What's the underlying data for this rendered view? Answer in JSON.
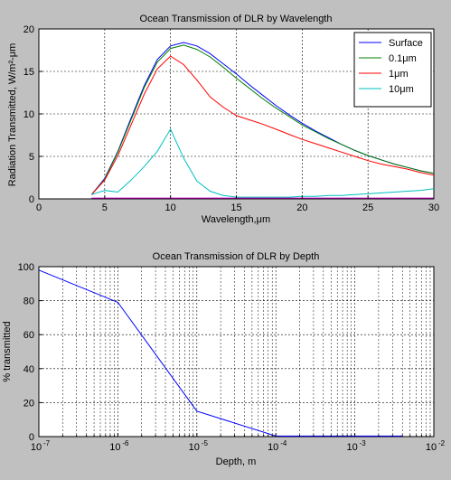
{
  "chart_data": [
    {
      "type": "line",
      "title": "Ocean Transmission of DLR by Wavelength",
      "xlabel": "Wavelength,μm",
      "ylabel": "Radiation Transmitted, W/m²-μm",
      "xlim": [
        0,
        30
      ],
      "ylim": [
        0,
        20
      ],
      "xticks": [
        0,
        5,
        10,
        15,
        20,
        25,
        30
      ],
      "yticks": [
        0,
        5,
        10,
        15,
        20
      ],
      "grid": true,
      "legend_position": "top-right",
      "series": [
        {
          "name": "Surface",
          "color": "#0000ff",
          "x": [
            4,
            5,
            6,
            7,
            8,
            9,
            10,
            11,
            12,
            13,
            14,
            15,
            16,
            17,
            18,
            19,
            20,
            21,
            22,
            23,
            24,
            25,
            26,
            27,
            28,
            29,
            30
          ],
          "y": [
            0.5,
            2.4,
            5.6,
            9.5,
            13.3,
            16.4,
            18.0,
            18.4,
            18.0,
            17.1,
            15.9,
            14.7,
            13.4,
            12.2,
            11.0,
            9.9,
            8.9,
            8.0,
            7.2,
            6.4,
            5.7,
            5.1,
            4.6,
            4.1,
            3.7,
            3.3,
            3.0
          ]
        },
        {
          "name": "0.1μm",
          "color": "#008000",
          "x": [
            4,
            5,
            6,
            7,
            8,
            9,
            10,
            11,
            12,
            13,
            14,
            15,
            16,
            17,
            18,
            19,
            20,
            21,
            22,
            23,
            24,
            25,
            26,
            27,
            28,
            29,
            30
          ],
          "y": [
            0.5,
            2.3,
            5.5,
            9.3,
            13.1,
            16.1,
            17.7,
            18.1,
            17.6,
            16.7,
            15.5,
            14.2,
            13.0,
            11.8,
            10.7,
            9.7,
            8.7,
            7.9,
            7.1,
            6.4,
            5.7,
            5.1,
            4.6,
            4.1,
            3.7,
            3.3,
            3.0
          ]
        },
        {
          "name": "1μm",
          "color": "#ff0000",
          "x": [
            4,
            5,
            6,
            7,
            8,
            9,
            10,
            11,
            12,
            13,
            14,
            15,
            16,
            17,
            18,
            19,
            20,
            21,
            22,
            23,
            24,
            25,
            26,
            27,
            28,
            29,
            30
          ],
          "y": [
            0.5,
            2.2,
            5.1,
            8.7,
            12.3,
            15.3,
            16.8,
            15.8,
            14.0,
            12.0,
            10.8,
            9.8,
            9.3,
            8.8,
            8.2,
            7.6,
            7.0,
            6.5,
            6.0,
            5.5,
            5.0,
            4.5,
            4.1,
            3.8,
            3.5,
            3.1,
            2.8
          ]
        },
        {
          "name": "10μm",
          "color": "#00bfbf",
          "x": [
            4,
            5,
            6,
            7,
            8,
            9,
            10,
            11,
            12,
            13,
            14,
            15,
            16,
            17,
            18,
            19,
            20,
            21,
            22,
            23,
            24,
            25,
            26,
            27,
            28,
            29,
            30
          ],
          "y": [
            0.5,
            1.0,
            0.8,
            2.2,
            3.8,
            5.6,
            8.2,
            4.8,
            2.1,
            0.9,
            0.4,
            0.2,
            0.2,
            0.2,
            0.2,
            0.2,
            0.3,
            0.3,
            0.4,
            0.4,
            0.5,
            0.6,
            0.7,
            0.8,
            0.9,
            1.0,
            1.2
          ]
        },
        {
          "name": "",
          "color": "#bf00bf",
          "x": [
            4,
            30
          ],
          "y": [
            0.1,
            0.1
          ]
        }
      ]
    },
    {
      "type": "line",
      "title": "Ocean Transmission of DLR by Depth",
      "xlabel": "Depth, m",
      "ylabel": "% transmitted",
      "xscale": "log",
      "xlim": [
        1e-07,
        0.01
      ],
      "ylim": [
        0,
        100
      ],
      "xticks": [
        1e-07,
        1e-06,
        1e-05,
        0.0001,
        0.001,
        0.01
      ],
      "xtick_labels": [
        [
          "10",
          "-7"
        ],
        [
          "10",
          "-6"
        ],
        [
          "10",
          "-5"
        ],
        [
          "10",
          "-4"
        ],
        [
          "10",
          "-3"
        ],
        [
          "10",
          "-2"
        ]
      ],
      "yticks": [
        0,
        20,
        40,
        60,
        80,
        100
      ],
      "grid": true,
      "series": [
        {
          "color": "#0000ff",
          "x": [
            1e-07,
            1e-06,
            1e-05,
            0.0001,
            0.004
          ],
          "y": [
            98,
            79,
            15,
            0.3,
            0.3
          ]
        }
      ]
    }
  ]
}
